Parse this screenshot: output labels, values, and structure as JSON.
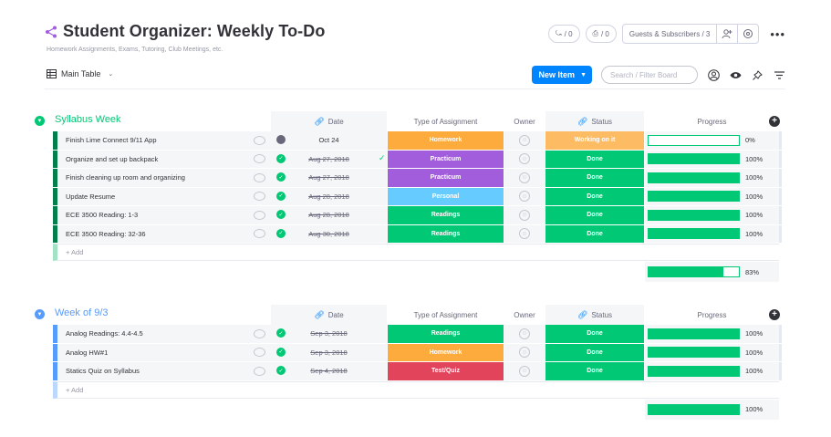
{
  "board": {
    "title": "Student Organizer: Weekly To-Do",
    "description": "Homework Assignments, Exams, Tutoring, Club Meetings, etc."
  },
  "header": {
    "activity_count": "/ 0",
    "updates_count": "/ 0",
    "guests_label": "Guests & Subscribers / 3"
  },
  "toolbar": {
    "view_label": "Main Table",
    "new_item_label": "New Item",
    "search_placeholder": "Search / Filter Board"
  },
  "columns": {
    "date": "Date",
    "type": "Type of Assignment",
    "owner": "Owner",
    "status": "Status",
    "progress": "Progress"
  },
  "colors": {
    "homework": "#fdab3d",
    "practicum": "#a25ddc",
    "personal": "#66ccff",
    "readings": "#00c875",
    "test_quiz": "#e2445c",
    "done": "#00c875",
    "working_on_it": "#fdbc64",
    "group1": "#00c875",
    "group2": "#579bfc",
    "group1_border": "#037f4c",
    "group2_border": "#579bfc"
  },
  "groups": [
    {
      "title": "Syllabus Week",
      "add_label": "+ Add",
      "summary_progress": "83%",
      "summary_fraction": 0.83,
      "rows": [
        {
          "name": "Finish Lime Connect 9/11 App",
          "date": "Oct 24",
          "date_done": false,
          "type": "Homework",
          "type_color": "homework",
          "status": "Working on it",
          "status_color": "working_on_it",
          "progress": "0%",
          "progress_fraction": 0.0,
          "dot": "pending",
          "tick": false
        },
        {
          "name": "Organize and set up backpack",
          "date": "Aug 27, 2018",
          "date_done": true,
          "type": "Practicum",
          "type_color": "practicum",
          "status": "Done",
          "status_color": "done",
          "progress": "100%",
          "progress_fraction": 1.0,
          "dot": "done",
          "tick": true
        },
        {
          "name": "Finish cleaning up room and organizing",
          "date": "Aug 27, 2018",
          "date_done": true,
          "type": "Practicum",
          "type_color": "practicum",
          "status": "Done",
          "status_color": "done",
          "progress": "100%",
          "progress_fraction": 1.0,
          "dot": "done",
          "tick": false
        },
        {
          "name": "Update Resume",
          "date": "Aug 28, 2018",
          "date_done": true,
          "type": "Personal",
          "type_color": "personal",
          "status": "Done",
          "status_color": "done",
          "progress": "100%",
          "progress_fraction": 1.0,
          "dot": "done",
          "tick": false
        },
        {
          "name": "ECE 3500 Reading: 1-3",
          "date": "Aug 28, 2018",
          "date_done": true,
          "type": "Readings",
          "type_color": "readings",
          "status": "Done",
          "status_color": "done",
          "progress": "100%",
          "progress_fraction": 1.0,
          "dot": "done",
          "tick": false
        },
        {
          "name": "ECE 3500 Reading: 32-36",
          "date": "Aug 30, 2018",
          "date_done": true,
          "type": "Readings",
          "type_color": "readings",
          "status": "Done",
          "status_color": "done",
          "progress": "100%",
          "progress_fraction": 1.0,
          "dot": "done",
          "tick": false
        }
      ]
    },
    {
      "title": "Week of 9/3",
      "add_label": "+ Add",
      "summary_progress": "100%",
      "summary_fraction": 1.0,
      "rows": [
        {
          "name": "Analog Readings: 4.4-4.5",
          "date": "Sep 3, 2018",
          "date_done": true,
          "type": "Readings",
          "type_color": "readings",
          "status": "Done",
          "status_color": "done",
          "progress": "100%",
          "progress_fraction": 1.0,
          "dot": "done",
          "tick": false
        },
        {
          "name": "Analog HW#1",
          "date": "Sep 3, 2018",
          "date_done": true,
          "type": "Homework",
          "type_color": "homework",
          "status": "Done",
          "status_color": "done",
          "progress": "100%",
          "progress_fraction": 1.0,
          "dot": "done",
          "tick": false
        },
        {
          "name": "Statics Quiz on Syllabus",
          "date": "Sep 4, 2018",
          "date_done": true,
          "type": "Test/Quiz",
          "type_color": "test_quiz",
          "status": "Done",
          "status_color": "done",
          "progress": "100%",
          "progress_fraction": 1.0,
          "dot": "done",
          "tick": false
        }
      ]
    }
  ]
}
